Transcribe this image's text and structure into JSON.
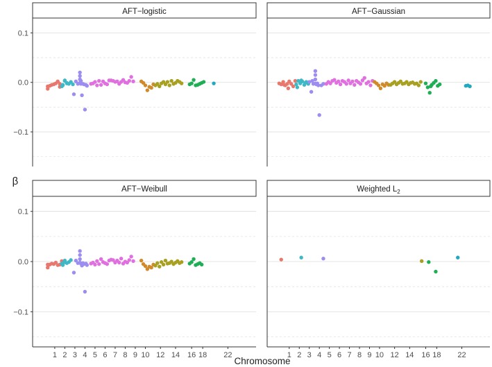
{
  "figure": {
    "xlabel": "Chromosome",
    "ylabel": "β"
  },
  "chart_data": [
    {
      "type": "scatter",
      "title": "AFT−logistic",
      "ylim": [
        -0.17,
        0.13
      ],
      "yticks": [
        -0.1,
        0.0,
        0.1
      ],
      "ytick_labels": [
        "−0.1",
        "0.0",
        "0.1"
      ],
      "xticks": [
        1,
        2,
        3,
        4,
        5,
        6,
        7,
        8,
        9,
        10,
        12,
        14,
        16,
        18,
        22
      ],
      "grid": true,
      "series": [
        {
          "color": "#e8776d",
          "x": [
            0.3,
            0.5,
            0.7,
            0.9,
            1.1,
            1.3,
            1.5,
            1.7,
            1.5,
            0.3
          ],
          "y": [
            -0.013,
            -0.007,
            -0.005,
            -0.004,
            -0.002,
            0.002,
            -0.003,
            -0.006,
            -0.009,
            -0.008
          ]
        },
        {
          "color": "#3fb8c5",
          "x": [
            1.8,
            2.0,
            2.2,
            2.4,
            2.6,
            2.8,
            2.2,
            2.0,
            1.7,
            1.8
          ],
          "y": [
            -0.005,
            0.003,
            -0.002,
            -0.003,
            0.001,
            -0.004,
            -0.001,
            0.004,
            -0.008,
            -0.006
          ]
        },
        {
          "color": "#9c8df0",
          "x": [
            2.9,
            3.1,
            3.3,
            3.5,
            3.5,
            3.5,
            3.5,
            3.6,
            3.7,
            3.8,
            3.9,
            4.0,
            4.1,
            4.2,
            3.6
          ],
          "y": [
            -0.024,
            0.002,
            -0.003,
            0.02,
            0.013,
            0.006,
            -0.001,
            -0.003,
            -0.026,
            -0.003,
            -0.004,
            -0.055,
            -0.005,
            -0.007,
            0.003
          ]
        },
        {
          "color": "#e070e0",
          "x": [
            4.6,
            4.8,
            5.0,
            5.2,
            5.4,
            5.6,
            5.8,
            6.0,
            6.2,
            6.4,
            6.6,
            6.8,
            7.0,
            7.2,
            7.4,
            7.6,
            7.8,
            8.0,
            8.2,
            8.4,
            8.6,
            8.8
          ],
          "y": [
            -0.003,
            -0.002,
            0.001,
            -0.006,
            0.003,
            -0.005,
            0.002,
            -0.002,
            -0.004,
            0.004,
            0.004,
            0.003,
            0.001,
            0.002,
            -0.003,
            0.001,
            0.005,
            0.0,
            -0.001,
            0.003,
            0.011,
            0.002
          ]
        },
        {
          "color": "#d08a2a",
          "x": [
            9.6,
            9.8,
            10.0,
            10.2,
            10.4,
            10.6,
            10.8
          ],
          "y": [
            0.002,
            -0.001,
            -0.006,
            -0.016,
            -0.009,
            -0.011,
            -0.004
          ]
        },
        {
          "color": "#a8a020",
          "x": [
            11.0,
            11.2,
            11.4,
            11.6,
            11.8,
            12.0,
            12.2,
            12.4,
            12.6,
            12.8,
            13.0,
            13.2,
            13.4,
            13.6
          ],
          "y": [
            -0.006,
            -0.003,
            -0.008,
            -0.002,
            0.001,
            -0.004,
            0.001,
            -0.006,
            0.003,
            -0.003,
            -0.001,
            0.003,
            0.001,
            -0.002
          ]
        },
        {
          "color": "#1fae55",
          "x": [
            14.4,
            14.6,
            14.8,
            15.0,
            15.2,
            15.4,
            15.6,
            15.8
          ],
          "y": [
            -0.004,
            -0.002,
            0.005,
            -0.006,
            -0.005,
            -0.003,
            -0.001,
            0.001
          ]
        },
        {
          "color": "#22a8c0",
          "x": [
            16.8
          ],
          "y": [
            -0.002
          ]
        }
      ]
    },
    {
      "type": "scatter",
      "title": "AFT−Gaussian",
      "ylim": [
        -0.17,
        0.13
      ],
      "yticks": [
        -0.1,
        0.0,
        0.1
      ],
      "ytick_labels": [
        "−0.1",
        "0.0",
        "0.1"
      ],
      "xticks": [
        1,
        2,
        3,
        4,
        5,
        6,
        7,
        8,
        9,
        10,
        12,
        14,
        16,
        18,
        22
      ],
      "grid": true,
      "series": [
        {
          "color": "#e8776d",
          "x": [
            0.0,
            0.2,
            0.4,
            0.6,
            0.8,
            1.0,
            1.2,
            1.4,
            1.6,
            0.5,
            0.9
          ],
          "y": [
            -0.002,
            -0.004,
            0.001,
            -0.006,
            -0.003,
            0.002,
            -0.003,
            -0.008,
            0.003,
            -0.005,
            -0.012
          ]
        },
        {
          "color": "#3fb8c5",
          "x": [
            1.7,
            1.9,
            2.1,
            2.3,
            2.5,
            2.7,
            2.9,
            1.8,
            2.2,
            2.6
          ],
          "y": [
            -0.004,
            0.003,
            -0.002,
            0.002,
            -0.005,
            0.001,
            -0.003,
            -0.01,
            0.004,
            -0.001
          ]
        },
        {
          "color": "#9c8df0",
          "x": [
            3.0,
            3.2,
            3.4,
            3.6,
            3.6,
            3.6,
            3.6,
            3.7,
            3.8,
            3.9,
            4.0,
            4.2,
            4.4,
            3.3
          ],
          "y": [
            0.001,
            -0.019,
            -0.003,
            0.023,
            0.015,
            0.006,
            -0.002,
            -0.004,
            -0.002,
            -0.006,
            -0.066,
            -0.006,
            -0.003,
            0.003
          ]
        },
        {
          "color": "#e070e0",
          "x": [
            4.7,
            4.9,
            5.1,
            5.3,
            5.5,
            5.7,
            5.9,
            6.1,
            6.3,
            6.5,
            6.7,
            6.9,
            7.1,
            7.3,
            7.5,
            7.7,
            7.9,
            8.1,
            8.3,
            8.5,
            8.7,
            8.9,
            9.1,
            9.3
          ],
          "y": [
            -0.003,
            0.001,
            -0.002,
            0.003,
            0.005,
            -0.001,
            0.002,
            -0.004,
            0.003,
            0.001,
            -0.003,
            0.004,
            -0.002,
            0.002,
            -0.005,
            0.003,
            0.0,
            -0.003,
            0.004,
            0.009,
            -0.002,
            0.001,
            -0.006,
            0.003
          ]
        },
        {
          "color": "#d08a2a",
          "x": [
            9.5,
            9.7,
            9.9,
            10.1,
            10.3,
            10.5,
            10.7,
            10.9
          ],
          "y": [
            0.001,
            -0.002,
            -0.006,
            -0.012,
            -0.004,
            -0.007,
            -0.002,
            -0.005
          ]
        },
        {
          "color": "#a8a020",
          "x": [
            11.1,
            11.3,
            11.5,
            11.7,
            11.9,
            12.1,
            12.3,
            12.5,
            12.7,
            12.9,
            13.1,
            13.3,
            13.5,
            13.7,
            13.9,
            14.1
          ],
          "y": [
            -0.005,
            -0.002,
            0.001,
            -0.004,
            -0.001,
            0.002,
            -0.003,
            -0.002,
            0.001,
            -0.004,
            -0.001,
            0.0,
            -0.003,
            -0.002,
            -0.006,
            0.001
          ]
        },
        {
          "color": "#1fae55",
          "x": [
            14.6,
            14.8,
            15.0,
            15.2,
            15.4,
            15.6,
            15.8,
            16.0,
            15.1
          ],
          "y": [
            -0.002,
            -0.01,
            -0.021,
            -0.005,
            -0.001,
            0.003,
            -0.007,
            -0.004,
            -0.008
          ]
        },
        {
          "color": "#22a8c0",
          "x": [
            18.6,
            18.8,
            19.0
          ],
          "y": [
            -0.007,
            -0.006,
            -0.008
          ]
        }
      ]
    },
    {
      "type": "scatter",
      "title": "AFT−Weibull",
      "ylim": [
        -0.17,
        0.13
      ],
      "yticks": [
        -0.1,
        0.0,
        0.1
      ],
      "ytick_labels": [
        "−0.1",
        "0.0",
        "0.1"
      ],
      "xticks": [
        1,
        2,
        3,
        4,
        5,
        6,
        7,
        8,
        9,
        10,
        12,
        14,
        16,
        18,
        22
      ],
      "grid": true,
      "series": [
        {
          "color": "#e8776d",
          "x": [
            0.3,
            0.5,
            0.7,
            0.9,
            1.1,
            1.3,
            1.5,
            1.7,
            0.3
          ],
          "y": [
            -0.012,
            -0.006,
            -0.004,
            -0.005,
            -0.002,
            -0.007,
            -0.006,
            0.001,
            -0.006
          ]
        },
        {
          "color": "#3fb8c5",
          "x": [
            1.8,
            2.0,
            2.2,
            2.4,
            2.6,
            1.7,
            1.9
          ],
          "y": [
            -0.007,
            0.002,
            -0.003,
            -0.001,
            0.003,
            -0.004,
            -0.002
          ]
        },
        {
          "color": "#9c8df0",
          "x": [
            2.9,
            3.1,
            3.3,
            3.5,
            3.5,
            3.5,
            3.5,
            3.6,
            3.7,
            3.8,
            3.9,
            4.0,
            4.1,
            4.2
          ],
          "y": [
            -0.022,
            0.002,
            -0.003,
            0.021,
            0.013,
            0.005,
            -0.002,
            -0.004,
            -0.008,
            -0.003,
            -0.005,
            -0.06,
            -0.004,
            -0.007
          ]
        },
        {
          "color": "#e070e0",
          "x": [
            4.6,
            4.8,
            5.0,
            5.2,
            5.4,
            5.6,
            5.8,
            6.0,
            6.2,
            6.4,
            6.6,
            6.8,
            7.0,
            7.2,
            7.4,
            7.6,
            7.8,
            8.0,
            8.2,
            8.4,
            8.6,
            8.8
          ],
          "y": [
            -0.004,
            -0.002,
            -0.006,
            0.001,
            -0.005,
            0.005,
            -0.001,
            -0.003,
            -0.005,
            0.002,
            0.004,
            0.003,
            -0.002,
            0.002,
            -0.002,
            0.006,
            -0.004,
            0.0,
            -0.002,
            0.003,
            0.01,
            0.001
          ]
        },
        {
          "color": "#d08a2a",
          "x": [
            9.6,
            9.8,
            10.0,
            10.2,
            10.4,
            10.6,
            10.8
          ],
          "y": [
            0.002,
            -0.005,
            -0.009,
            -0.015,
            -0.01,
            -0.012,
            -0.006
          ]
        },
        {
          "color": "#a8a020",
          "x": [
            11.0,
            11.2,
            11.4,
            11.6,
            11.8,
            12.0,
            12.2,
            12.4,
            12.6,
            12.8,
            13.0,
            13.2,
            13.4,
            13.6
          ],
          "y": [
            -0.008,
            -0.003,
            -0.01,
            -0.001,
            -0.006,
            0.002,
            -0.004,
            -0.003,
            0.0,
            -0.005,
            -0.002,
            0.001,
            -0.003,
            -0.001
          ]
        },
        {
          "color": "#1fae55",
          "x": [
            14.4,
            14.6,
            14.8,
            15.0,
            15.2,
            15.4,
            15.6
          ],
          "y": [
            -0.004,
            -0.001,
            0.005,
            -0.007,
            -0.005,
            -0.003,
            -0.006
          ]
        }
      ]
    },
    {
      "type": "scatter",
      "title_main": "Weighted L",
      "title_sub": "2",
      "ylim": [
        -0.17,
        0.13
      ],
      "yticks": [
        -0.1,
        0.0,
        0.1
      ],
      "ytick_labels": [
        "−0.1",
        "0.0",
        "0.1"
      ],
      "xticks": [
        1,
        2,
        3,
        4,
        5,
        6,
        7,
        8,
        9,
        10,
        12,
        14,
        16,
        18,
        22
      ],
      "grid": true,
      "series": [
        {
          "color": "#e8776d",
          "x": [
            0.2
          ],
          "y": [
            0.004
          ]
        },
        {
          "color": "#3fb8c5",
          "x": [
            2.2
          ],
          "y": [
            0.008
          ]
        },
        {
          "color": "#9c8df0",
          "x": [
            4.4
          ],
          "y": [
            0.006
          ]
        },
        {
          "color": "#a8a020",
          "x": [
            14.2
          ],
          "y": [
            0.001
          ]
        },
        {
          "color": "#1fae55",
          "x": [
            14.9,
            15.6
          ],
          "y": [
            -0.001,
            -0.02
          ]
        },
        {
          "color": "#22a8c0",
          "x": [
            17.8
          ],
          "y": [
            0.008
          ]
        }
      ]
    }
  ]
}
